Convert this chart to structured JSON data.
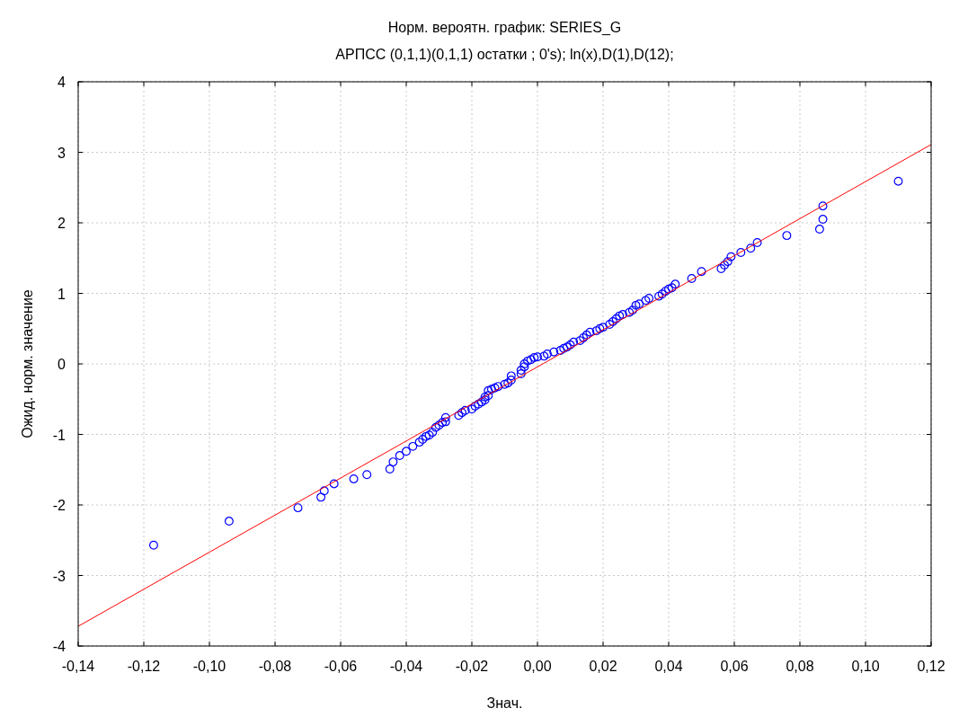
{
  "chart_data": {
    "type": "scatter",
    "title": "Норм. вероятн. график:   SERIES_G",
    "subtitle": "АРПСС (0,1,1)(0,1,1) остатки  ; 0's); ln(x),D(1),D(12);",
    "xlabel": "Знач.",
    "ylabel": "Ожид. норм. значение",
    "xlim": [
      -0.14,
      0.12
    ],
    "ylim": [
      -4,
      4
    ],
    "xticks": [
      {
        "value": -0.14,
        "label": "-0,14"
      },
      {
        "value": -0.12,
        "label": "-0,12"
      },
      {
        "value": -0.1,
        "label": "-0,10"
      },
      {
        "value": -0.08,
        "label": "-0,08"
      },
      {
        "value": -0.06,
        "label": "-0,06"
      },
      {
        "value": -0.04,
        "label": "-0,04"
      },
      {
        "value": -0.02,
        "label": "-0,02"
      },
      {
        "value": 0,
        "label": "0,00"
      },
      {
        "value": 0.02,
        "label": "0,02"
      },
      {
        "value": 0.04,
        "label": "0,04"
      },
      {
        "value": 0.06,
        "label": "0,06"
      },
      {
        "value": 0.08,
        "label": "0,08"
      },
      {
        "value": 0.1,
        "label": "0,10"
      },
      {
        "value": 0.12,
        "label": "0,12"
      }
    ],
    "yticks": [
      -4,
      -3,
      -2,
      -1,
      0,
      1,
      2,
      3,
      4
    ],
    "grid": true,
    "marker": "circle",
    "series": [
      {
        "color": "#0000ff",
        "x": [
          -0.117,
          -0.094,
          -0.073,
          -0.066,
          -0.065,
          -0.062,
          -0.056,
          -0.052,
          -0.045,
          -0.044,
          -0.042,
          -0.04,
          -0.038,
          -0.036,
          -0.035,
          -0.034,
          -0.033,
          -0.032,
          -0.031,
          -0.03,
          -0.029,
          -0.028,
          -0.028,
          -0.024,
          -0.023,
          -0.022,
          -0.02,
          -0.019,
          -0.018,
          -0.017,
          -0.016,
          -0.016,
          -0.015,
          -0.015,
          -0.014,
          -0.013,
          -0.012,
          -0.01,
          -0.009,
          -0.008,
          -0.008,
          -0.005,
          -0.005,
          -0.004,
          -0.004,
          -0.003,
          -0.002,
          -0.001,
          0.0,
          0.002,
          0.003,
          0.005,
          0.007,
          0.008,
          0.009,
          0.01,
          0.011,
          0.013,
          0.014,
          0.015,
          0.016,
          0.018,
          0.019,
          0.02,
          0.022,
          0.023,
          0.024,
          0.025,
          0.026,
          0.028,
          0.029,
          0.03,
          0.031,
          0.033,
          0.034,
          0.037,
          0.038,
          0.039,
          0.04,
          0.041,
          0.042,
          0.047,
          0.05,
          0.056,
          0.057,
          0.058,
          0.059,
          0.062,
          0.065,
          0.067,
          0.076,
          0.086,
          0.087,
          0.087,
          0.11
        ],
        "values": [
          -2.57,
          -2.23,
          -2.04,
          -1.89,
          -1.8,
          -1.7,
          -1.63,
          -1.57,
          -1.49,
          -1.39,
          -1.3,
          -1.24,
          -1.17,
          -1.11,
          -1.07,
          -1.03,
          -1.01,
          -0.97,
          -0.9,
          -0.87,
          -0.83,
          -0.82,
          -0.76,
          -0.73,
          -0.69,
          -0.66,
          -0.64,
          -0.6,
          -0.57,
          -0.54,
          -0.51,
          -0.47,
          -0.45,
          -0.38,
          -0.36,
          -0.34,
          -0.32,
          -0.29,
          -0.27,
          -0.23,
          -0.17,
          -0.14,
          -0.09,
          -0.04,
          0.0,
          0.04,
          0.06,
          0.09,
          0.1,
          0.11,
          0.14,
          0.17,
          0.19,
          0.22,
          0.24,
          0.27,
          0.31,
          0.33,
          0.37,
          0.41,
          0.45,
          0.47,
          0.5,
          0.52,
          0.56,
          0.6,
          0.64,
          0.68,
          0.7,
          0.73,
          0.76,
          0.83,
          0.85,
          0.9,
          0.93,
          0.96,
          0.99,
          1.03,
          1.06,
          1.08,
          1.13,
          1.21,
          1.31,
          1.35,
          1.4,
          1.45,
          1.52,
          1.58,
          1.64,
          1.72,
          1.82,
          1.91,
          2.05,
          2.24,
          2.59
        ]
      },
      {
        "type": "line",
        "marker": "none",
        "color": "#ff0000",
        "x": [
          -0.14,
          0.12
        ],
        "values": [
          -3.72,
          3.11
        ]
      }
    ]
  }
}
